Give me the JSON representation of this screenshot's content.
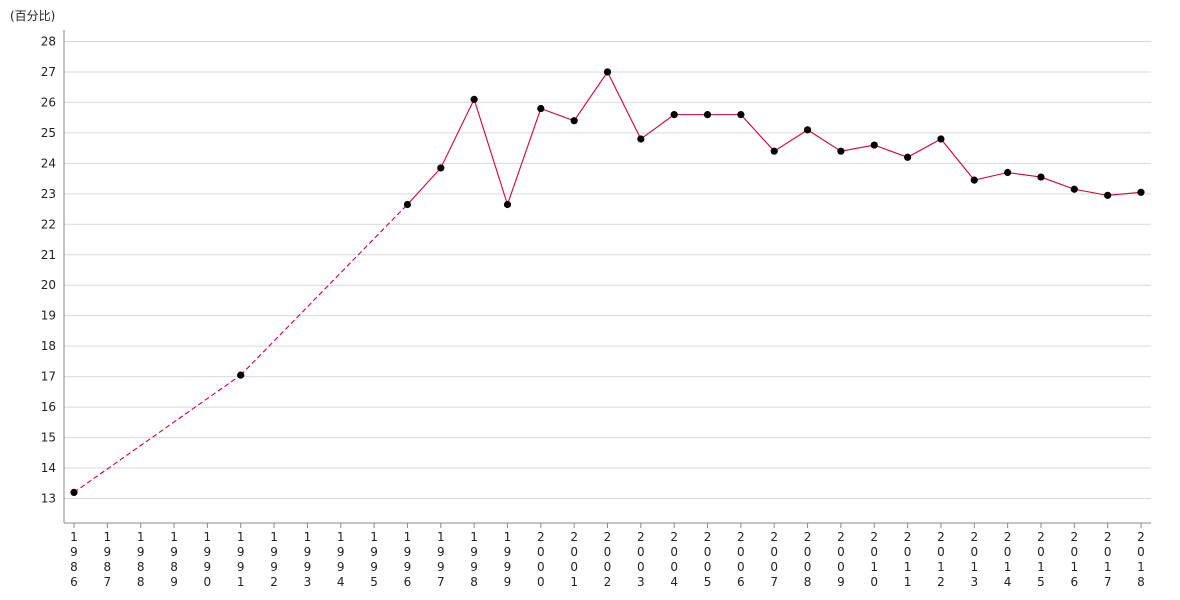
{
  "chart_data": {
    "type": "line",
    "unit_label": "(百分比)",
    "y_ticks": [
      13,
      14,
      15,
      16,
      17,
      18,
      19,
      20,
      21,
      22,
      23,
      24,
      25,
      26,
      27,
      28
    ],
    "ylim": [
      12.2,
      28.3
    ],
    "x_ticks": [
      "1986",
      "1987",
      "1988",
      "1989",
      "1990",
      "1991",
      "1992",
      "1993",
      "1994",
      "1995",
      "1996",
      "1997",
      "1998",
      "1999",
      "2000",
      "2001",
      "2002",
      "2003",
      "2004",
      "2005",
      "2006",
      "2007",
      "2008",
      "2009",
      "2010",
      "2011",
      "2012",
      "2013",
      "2014",
      "2015",
      "2016",
      "2017",
      "2018"
    ],
    "grid": true,
    "line_color": "#d6003a",
    "marker_color": "#000000",
    "series": [
      {
        "points": [
          {
            "x": "1986",
            "y": 13.2
          },
          {
            "x": "1991",
            "y": 17.05
          },
          {
            "x": "1996",
            "y": 22.65
          },
          {
            "x": "1997",
            "y": 23.85
          },
          {
            "x": "1998",
            "y": 26.1
          },
          {
            "x": "1999",
            "y": 22.65
          },
          {
            "x": "2000",
            "y": 25.8
          },
          {
            "x": "2001",
            "y": 25.4
          },
          {
            "x": "2002",
            "y": 27.0
          },
          {
            "x": "2003",
            "y": 24.8
          },
          {
            "x": "2004",
            "y": 25.6
          },
          {
            "x": "2005",
            "y": 25.6
          },
          {
            "x": "2006",
            "y": 25.6
          },
          {
            "x": "2007",
            "y": 24.4
          },
          {
            "x": "2008",
            "y": 25.1
          },
          {
            "x": "2009",
            "y": 24.4
          },
          {
            "x": "2010",
            "y": 24.6
          },
          {
            "x": "2011",
            "y": 24.2
          },
          {
            "x": "2012",
            "y": 24.8
          },
          {
            "x": "2013",
            "y": 23.45
          },
          {
            "x": "2014",
            "y": 23.7
          },
          {
            "x": "2015",
            "y": 23.55
          },
          {
            "x": "2016",
            "y": 23.15
          },
          {
            "x": "2017",
            "y": 22.95
          },
          {
            "x": "2018",
            "y": 23.05
          }
        ]
      }
    ]
  }
}
